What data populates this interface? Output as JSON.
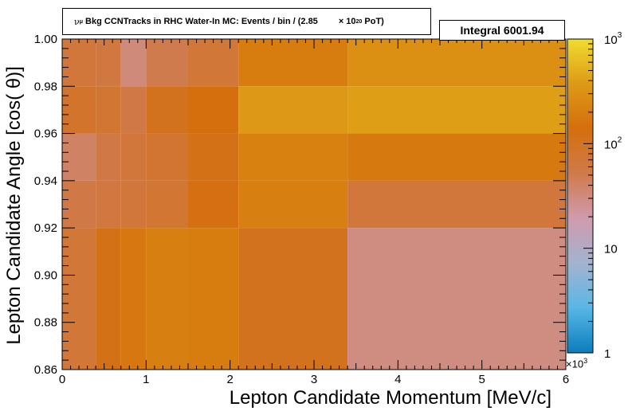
{
  "title": {
    "nu_symbol": "ν",
    "nu_sub": "μ",
    "text": " Bkg CCNTracks in RHC Water-In MC: Events / bin / (2.85",
    "times": "× 10",
    "exp": "20",
    "tail": " PoT)"
  },
  "integral": "Integral 6001.94",
  "chart_data": {
    "type": "heatmap",
    "xlabel": "Lepton Candidate Momentum [MeV/c]",
    "ylabel": "Lepton Candidate Angle [cos(  θ)]",
    "x_multiplier_label": "×10",
    "x_multiplier_exp": "3",
    "xlim": [
      0,
      6
    ],
    "ylim": [
      0.86,
      1.0
    ],
    "z_scale": "log",
    "zlim": [
      1,
      1000
    ],
    "x_ticks": [
      "0",
      "1",
      "2",
      "3",
      "4",
      "5",
      "6"
    ],
    "y_ticks": [
      "0.86",
      "0.88",
      "0.90",
      "0.92",
      "0.94",
      "0.96",
      "0.98",
      "1.00"
    ],
    "z_ticks": [
      {
        "value": 1000,
        "base": "10",
        "exp": "3"
      },
      {
        "value": 100,
        "base": "10",
        "exp": "2"
      },
      {
        "value": 10,
        "base": "10",
        "exp": ""
      },
      {
        "value": 1,
        "base": "1",
        "exp": ""
      }
    ],
    "colors": {
      "palette": [
        "#0b7dbc",
        "#58b6e6",
        "#a3b3d0",
        "#cf9bad",
        "#d07a4a",
        "#d46f0e",
        "#dd9a15",
        "#f0dc30"
      ]
    },
    "bins": [
      {
        "x": [
          0.0,
          0.4
        ],
        "y": [
          0.98,
          1.0
        ],
        "z": 65
      },
      {
        "x": [
          0.4,
          0.7
        ],
        "y": [
          0.98,
          1.0
        ],
        "z": 60
      },
      {
        "x": [
          0.7,
          1.0
        ],
        "y": [
          0.98,
          1.0
        ],
        "z": 32
      },
      {
        "x": [
          1.0,
          1.5
        ],
        "y": [
          0.98,
          1.0
        ],
        "z": 50
      },
      {
        "x": [
          1.5,
          2.1
        ],
        "y": [
          0.98,
          1.0
        ],
        "z": 70
      },
      {
        "x": [
          2.1,
          3.4
        ],
        "y": [
          0.98,
          1.0
        ],
        "z": 190
      },
      {
        "x": [
          3.4,
          6.0
        ],
        "y": [
          0.98,
          1.0
        ],
        "z": 290
      },
      {
        "x": [
          0.0,
          0.4
        ],
        "y": [
          0.96,
          0.98
        ],
        "z": 85
      },
      {
        "x": [
          0.4,
          0.7
        ],
        "y": [
          0.96,
          0.98
        ],
        "z": 75
      },
      {
        "x": [
          0.7,
          1.0
        ],
        "y": [
          0.96,
          0.98
        ],
        "z": 55
      },
      {
        "x": [
          1.0,
          1.5
        ],
        "y": [
          0.96,
          0.98
        ],
        "z": 110
      },
      {
        "x": [
          1.5,
          2.1
        ],
        "y": [
          0.96,
          0.98
        ],
        "z": 140
      },
      {
        "x": [
          2.1,
          3.4
        ],
        "y": [
          0.96,
          0.98
        ],
        "z": 360
      },
      {
        "x": [
          3.4,
          6.0
        ],
        "y": [
          0.96,
          0.98
        ],
        "z": 400
      },
      {
        "x": [
          0.0,
          0.4
        ],
        "y": [
          0.94,
          0.96
        ],
        "z": 40
      },
      {
        "x": [
          0.4,
          0.7
        ],
        "y": [
          0.94,
          0.96
        ],
        "z": 55
      },
      {
        "x": [
          0.7,
          1.0
        ],
        "y": [
          0.94,
          0.96
        ],
        "z": 65
      },
      {
        "x": [
          1.0,
          1.5
        ],
        "y": [
          0.94,
          0.96
        ],
        "z": 80
      },
      {
        "x": [
          1.5,
          2.1
        ],
        "y": [
          0.94,
          0.96
        ],
        "z": 120
      },
      {
        "x": [
          2.1,
          3.4
        ],
        "y": [
          0.94,
          0.96
        ],
        "z": 210
      },
      {
        "x": [
          3.4,
          6.0
        ],
        "y": [
          0.94,
          0.96
        ],
        "z": 180
      },
      {
        "x": [
          0.0,
          0.4
        ],
        "y": [
          0.92,
          0.94
        ],
        "z": 55
      },
      {
        "x": [
          0.4,
          0.7
        ],
        "y": [
          0.92,
          0.94
        ],
        "z": 60
      },
      {
        "x": [
          0.7,
          1.0
        ],
        "y": [
          0.92,
          0.94
        ],
        "z": 65
      },
      {
        "x": [
          1.0,
          1.5
        ],
        "y": [
          0.92,
          0.94
        ],
        "z": 75
      },
      {
        "x": [
          1.5,
          2.1
        ],
        "y": [
          0.92,
          0.94
        ],
        "z": 130
      },
      {
        "x": [
          2.1,
          3.4
        ],
        "y": [
          0.92,
          0.94
        ],
        "z": 200
      },
      {
        "x": [
          3.4,
          6.0
        ],
        "y": [
          0.92,
          0.94
        ],
        "z": 65
      },
      {
        "x": [
          0.0,
          0.4
        ],
        "y": [
          0.86,
          0.92
        ],
        "z": 70
      },
      {
        "x": [
          0.4,
          0.7
        ],
        "y": [
          0.86,
          0.92
        ],
        "z": 120
      },
      {
        "x": [
          0.7,
          1.0
        ],
        "y": [
          0.86,
          0.92
        ],
        "z": 170
      },
      {
        "x": [
          1.0,
          1.5
        ],
        "y": [
          0.86,
          0.92
        ],
        "z": 200
      },
      {
        "x": [
          1.5,
          2.1
        ],
        "y": [
          0.86,
          0.92
        ],
        "z": 190
      },
      {
        "x": [
          2.1,
          3.4
        ],
        "y": [
          0.86,
          0.92
        ],
        "z": 110
      },
      {
        "x": [
          3.4,
          6.0
        ],
        "y": [
          0.86,
          0.92
        ],
        "z": 30
      }
    ]
  }
}
